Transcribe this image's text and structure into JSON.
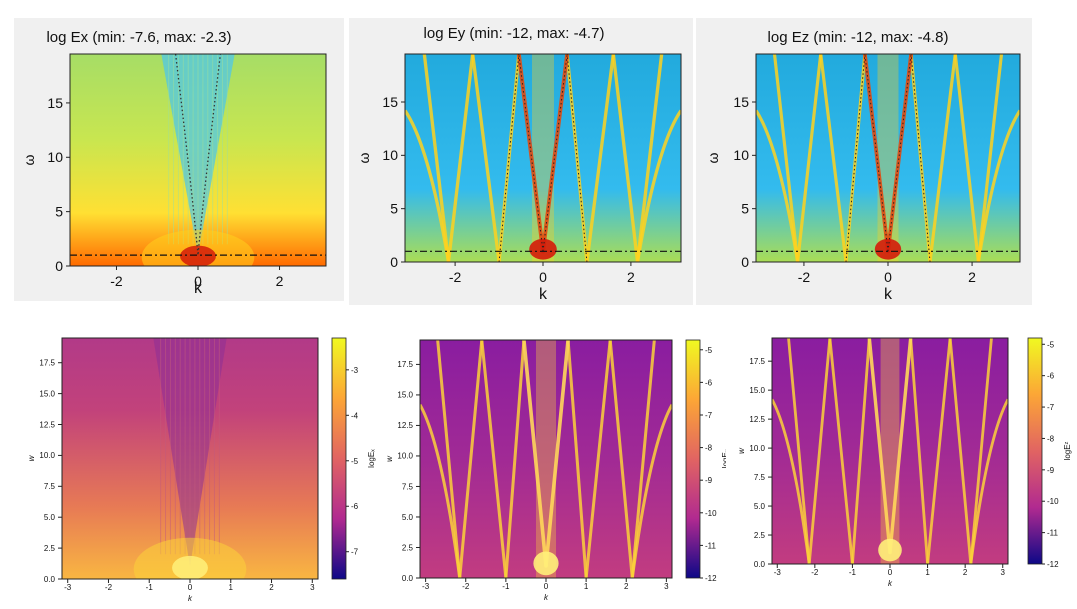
{
  "chart_data": [
    {
      "id": "top-ex",
      "type": "heatmap",
      "style": "jet",
      "pattern": "vcone",
      "title": "log Ex (min:  -7.6, max:  -2.3)",
      "xlabel": "k",
      "ylabel": "ω",
      "xlim": [
        -3.14,
        3.14
      ],
      "ylim": [
        0,
        19.5
      ],
      "xticks": [
        "-2",
        "0",
        "2"
      ],
      "yticks": [
        "0",
        "5",
        "10",
        "15"
      ],
      "reference_line_w": 1.0
    },
    {
      "id": "top-ey",
      "type": "heatmap",
      "style": "jet",
      "pattern": "bands",
      "title": "log Ey (min:   -12, max:  -4.7)",
      "xlabel": "k",
      "ylabel": "ω",
      "xlim": [
        -3.14,
        3.14
      ],
      "ylim": [
        0,
        19.5
      ],
      "xticks": [
        "-2",
        "0",
        "2"
      ],
      "yticks": [
        "0",
        "5",
        "10",
        "15"
      ],
      "reference_line_w": 1.0
    },
    {
      "id": "top-ez",
      "type": "heatmap",
      "style": "jet",
      "pattern": "bands",
      "title": "log Ez (min:   -12, max:  -4.8)",
      "xlabel": "k",
      "ylabel": "ω",
      "xlim": [
        -3.14,
        3.14
      ],
      "ylim": [
        0,
        19.5
      ],
      "xticks": [
        "-2",
        "0",
        "2"
      ],
      "yticks": [
        "0",
        "5",
        "10",
        "15"
      ],
      "reference_line_w": 1.0
    },
    {
      "id": "bot-ex",
      "type": "heatmap",
      "style": "plasma",
      "pattern": "vcone",
      "xlabel": "k",
      "ylabel": "w",
      "colorbar_label": "logEₓ",
      "xlim": [
        -3.14,
        3.14
      ],
      "ylim": [
        0,
        19.5
      ],
      "xticks": [
        "-3",
        "-2",
        "-1",
        "0",
        "1",
        "2",
        "3"
      ],
      "yticks": [
        "0.0",
        "2.5",
        "5.0",
        "7.5",
        "10.0",
        "12.5",
        "15.0",
        "17.5"
      ],
      "cbar_range": [
        -7.6,
        -2.3
      ],
      "cbar_ticks": [
        "-3",
        "-4",
        "-5",
        "-6",
        "-7"
      ]
    },
    {
      "id": "bot-ey",
      "type": "heatmap",
      "style": "plasma",
      "pattern": "bands",
      "xlabel": "k",
      "ylabel": "w",
      "colorbar_label": "logEᵧ",
      "xlim": [
        -3.14,
        3.14
      ],
      "ylim": [
        0,
        19.5
      ],
      "xticks": [
        "-3",
        "-2",
        "-1",
        "0",
        "1",
        "2",
        "3"
      ],
      "yticks": [
        "0.0",
        "2.5",
        "5.0",
        "7.5",
        "10.0",
        "12.5",
        "15.0",
        "17.5"
      ],
      "cbar_range": [
        -12,
        -4.7
      ],
      "cbar_ticks": [
        "-5",
        "-6",
        "-7",
        "-8",
        "-9",
        "-10",
        "-11",
        "-12"
      ]
    },
    {
      "id": "bot-ez",
      "type": "heatmap",
      "style": "plasma",
      "pattern": "bands",
      "xlabel": "k",
      "ylabel": "w",
      "colorbar_label": "logEᶻ",
      "xlim": [
        -3.14,
        3.14
      ],
      "ylim": [
        0,
        19.5
      ],
      "xticks": [
        "-3",
        "-2",
        "-1",
        "0",
        "1",
        "2",
        "3"
      ],
      "yticks": [
        "0.0",
        "2.5",
        "5.0",
        "7.5",
        "10.0",
        "12.5",
        "15.0",
        "17.5"
      ],
      "cbar_range": [
        -12,
        -4.8
      ],
      "cbar_ticks": [
        "-5",
        "-6",
        "-7",
        "-8",
        "-9",
        "-10",
        "-11",
        "-12"
      ]
    }
  ]
}
